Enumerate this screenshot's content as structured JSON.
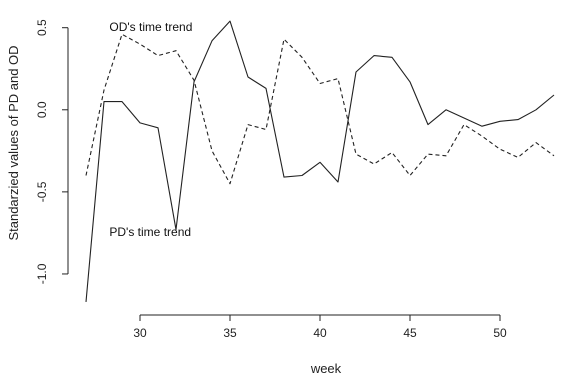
{
  "chart_data": {
    "type": "line",
    "xlabel": "week",
    "ylabel": "Standarzied values of PD and OD",
    "x": [
      27,
      28,
      29,
      30,
      31,
      32,
      33,
      34,
      35,
      36,
      37,
      38,
      39,
      40,
      41,
      42,
      43,
      44,
      45,
      46,
      47,
      48,
      49,
      50,
      51,
      52,
      53
    ],
    "xlim": [
      26,
      54
    ],
    "ylim": [
      -1.25,
      0.62
    ],
    "xticks": [
      30,
      35,
      40,
      45,
      50
    ],
    "yticks": [
      -1.0,
      -0.5,
      0.0,
      0.5
    ],
    "ytick_labels": [
      "-1.0",
      "-0.5",
      "0.0",
      "0.5"
    ],
    "grid": false,
    "series": [
      {
        "key": "pd",
        "style": "solid",
        "values": [
          -1.17,
          0.05,
          0.05,
          -0.08,
          -0.11,
          -0.73,
          0.17,
          0.42,
          0.54,
          0.2,
          0.13,
          -0.41,
          -0.4,
          -0.32,
          -0.44,
          0.23,
          0.33,
          0.32,
          0.17,
          -0.09,
          0.0,
          -0.05,
          -0.1,
          -0.07,
          -0.06,
          0.0,
          0.09
        ]
      },
      {
        "key": "od",
        "style": "dashed",
        "values": [
          -0.4,
          0.12,
          0.46,
          0.4,
          0.33,
          0.36,
          0.18,
          -0.25,
          -0.45,
          -0.09,
          -0.12,
          0.43,
          0.32,
          0.16,
          0.19,
          -0.27,
          -0.33,
          -0.26,
          -0.4,
          -0.27,
          -0.28,
          -0.09,
          -0.16,
          -0.24,
          -0.29,
          -0.2,
          -0.28
        ]
      }
    ],
    "annotations": [
      {
        "text": "OD's time trend",
        "x": 28.3,
        "y": 0.48
      },
      {
        "text": "PD's time trend",
        "x": 28.3,
        "y": -0.77
      }
    ]
  }
}
